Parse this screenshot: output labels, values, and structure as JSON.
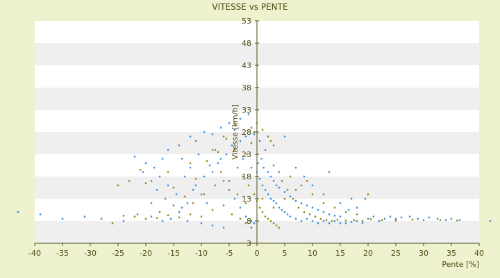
{
  "chart_data": {
    "type": "scatter",
    "title": "VITESSE vs PENTE",
    "xlabel": "Pente [%]",
    "ylabel": "Vitesse [km/h]",
    "xlim": [
      -40,
      40
    ],
    "ylim": [
      3,
      53
    ],
    "xticks": [
      -40,
      -35,
      -30,
      -25,
      -20,
      -15,
      -10,
      -5,
      0,
      5,
      10,
      15,
      20,
      25,
      30,
      35,
      40
    ],
    "yticks": [
      3,
      8,
      13,
      18,
      23,
      28,
      33,
      38,
      43,
      48,
      53
    ],
    "grid": "horizontal alternating bands",
    "legend": "none",
    "colors": {
      "page_background": "#eef2cf",
      "plot_band_light": "#ffffff",
      "plot_band_dark": "#efefef",
      "axis": "#4a4a10",
      "series_blue": "#3a8fd8",
      "series_olive": "#8a8a1a"
    },
    "series": [
      {
        "color": "blue",
        "points": [
          [
            -43,
            10
          ],
          [
            -39,
            9.5
          ],
          [
            -35,
            8.5
          ],
          [
            -31,
            9
          ],
          [
            -28,
            8.5
          ],
          [
            -24,
            8
          ],
          [
            -21.5,
            9.5
          ],
          [
            -19,
            9
          ],
          [
            -17,
            8
          ],
          [
            -15.5,
            8.5
          ],
          [
            -12.5,
            8
          ],
          [
            -10,
            7.5
          ],
          [
            -8,
            7
          ],
          [
            -6,
            6.5
          ],
          [
            -22,
            22.5
          ],
          [
            -20,
            21
          ],
          [
            -17,
            22
          ],
          [
            -16,
            24
          ],
          [
            -14,
            25
          ],
          [
            -12,
            27
          ],
          [
            -11,
            26
          ],
          [
            -9.5,
            28
          ],
          [
            -8,
            27.5
          ],
          [
            -6.5,
            29
          ],
          [
            -5,
            30
          ],
          [
            -4,
            28.5
          ],
          [
            -3,
            31
          ],
          [
            -1.5,
            32
          ],
          [
            -20.5,
            19
          ],
          [
            -19,
            17
          ],
          [
            -18,
            15
          ],
          [
            -16.5,
            13
          ],
          [
            -15,
            11.5
          ],
          [
            -14,
            10
          ],
          [
            -13,
            18
          ],
          [
            -12,
            20
          ],
          [
            -11,
            16
          ],
          [
            -10,
            14
          ],
          [
            -9,
            12
          ],
          [
            -8,
            19
          ],
          [
            -7,
            21
          ],
          [
            -6,
            17
          ],
          [
            -5,
            15
          ],
          [
            -4,
            13
          ],
          [
            -3,
            11
          ],
          [
            -2,
            9
          ],
          [
            -1,
            8
          ],
          [
            -0.5,
            7.5
          ],
          [
            -13.5,
            22
          ],
          [
            -10.5,
            23
          ],
          [
            -7.5,
            24
          ],
          [
            -4.5,
            25
          ],
          [
            -2.5,
            22
          ],
          [
            -1,
            20
          ],
          [
            0,
            19
          ],
          [
            0.5,
            17.5
          ],
          [
            1,
            16
          ],
          [
            1.5,
            15
          ],
          [
            2,
            14
          ],
          [
            2.5,
            13
          ],
          [
            3,
            12.5
          ],
          [
            3.5,
            12
          ],
          [
            4,
            11
          ],
          [
            4.5,
            10.5
          ],
          [
            5,
            10
          ],
          [
            5.5,
            9.5
          ],
          [
            6,
            9
          ],
          [
            7,
            8.5
          ],
          [
            8,
            8
          ],
          [
            9,
            8.5
          ],
          [
            10,
            8
          ],
          [
            11,
            7.5
          ],
          [
            12,
            8
          ],
          [
            13,
            7.5
          ],
          [
            14,
            8
          ],
          [
            15,
            7.5
          ],
          [
            16,
            7.5
          ],
          [
            17,
            7.8
          ],
          [
            18,
            8
          ],
          [
            19,
            7.5
          ],
          [
            20,
            8.5
          ],
          [
            21,
            9
          ],
          [
            22,
            8
          ],
          [
            23,
            8.5
          ],
          [
            24,
            9
          ],
          [
            25,
            8.5
          ],
          [
            26,
            8.8
          ],
          [
            27.5,
            9
          ],
          [
            29,
            8.5
          ],
          [
            30,
            8.2
          ],
          [
            31,
            8.8
          ],
          [
            32.5,
            8.5
          ],
          [
            34,
            8.2
          ],
          [
            35,
            8.5
          ],
          [
            36.5,
            8.2
          ],
          [
            42,
            8
          ],
          [
            0.2,
            21
          ],
          [
            0.8,
            22
          ],
          [
            1.2,
            20
          ],
          [
            2,
            19
          ],
          [
            2.5,
            18
          ],
          [
            3,
            17
          ],
          [
            3.5,
            16
          ],
          [
            4,
            15.5
          ],
          [
            5,
            14.5
          ],
          [
            6,
            13.5
          ],
          [
            7,
            12.5
          ],
          [
            8,
            12
          ],
          [
            9,
            11.5
          ],
          [
            10,
            11
          ],
          [
            11,
            10.5
          ],
          [
            12,
            10
          ],
          [
            13,
            9.5
          ],
          [
            14,
            9.2
          ],
          [
            15,
            9
          ],
          [
            16.5,
            10.5
          ],
          [
            18,
            11
          ],
          [
            19.5,
            13
          ],
          [
            17,
            13
          ],
          [
            15,
            12
          ],
          [
            12,
            14
          ],
          [
            10,
            16
          ],
          [
            8.5,
            18
          ],
          [
            7,
            20
          ],
          [
            5,
            27
          ],
          [
            3,
            25
          ],
          [
            1.5,
            24
          ],
          [
            0.5,
            26
          ],
          [
            -0.5,
            27.5
          ],
          [
            -1,
            29
          ],
          [
            -2,
            27
          ],
          [
            -3,
            26
          ],
          [
            -5.5,
            23
          ],
          [
            -6.5,
            22
          ],
          [
            -8.5,
            20.5
          ],
          [
            -9.5,
            18
          ],
          [
            -11.5,
            15
          ],
          [
            -12.5,
            12
          ],
          [
            -13.5,
            11
          ],
          [
            -14.5,
            14
          ],
          [
            -16,
            16
          ],
          [
            -17.5,
            18
          ],
          [
            -18.5,
            20
          ]
        ]
      },
      {
        "color": "olive",
        "points": [
          [
            -26,
            7.5
          ],
          [
            -23,
            17
          ],
          [
            -21,
            19.5
          ],
          [
            -19,
            12
          ],
          [
            -17.5,
            10
          ],
          [
            -15,
            15.5
          ],
          [
            -13,
            13.5
          ],
          [
            -11,
            17.5
          ],
          [
            -9,
            21.5
          ],
          [
            -7,
            23.5
          ],
          [
            -5.5,
            26.5
          ],
          [
            -4,
            24
          ],
          [
            -3.5,
            20
          ],
          [
            -2.5,
            18
          ],
          [
            -1.5,
            16
          ],
          [
            -0.5,
            14
          ],
          [
            0,
            12.5
          ],
          [
            0.5,
            11
          ],
          [
            1,
            10
          ],
          [
            1.5,
            9
          ],
          [
            2,
            8.5
          ],
          [
            2.5,
            8
          ],
          [
            3,
            7.5
          ],
          [
            3.5,
            7
          ],
          [
            4,
            6.5
          ],
          [
            0,
            30
          ],
          [
            -0.5,
            28
          ],
          [
            1,
            28.5
          ],
          [
            2,
            27
          ],
          [
            2.5,
            26
          ],
          [
            -1,
            25.5
          ],
          [
            -1.8,
            23
          ],
          [
            4.5,
            17
          ],
          [
            5.5,
            15
          ],
          [
            6.5,
            13
          ],
          [
            7.5,
            11
          ],
          [
            8.5,
            10
          ],
          [
            9.5,
            9.5
          ],
          [
            10.5,
            9
          ],
          [
            11.5,
            8.5
          ],
          [
            12.5,
            8.2
          ],
          [
            13.5,
            8
          ],
          [
            14.5,
            8.3
          ],
          [
            16,
            8.1
          ],
          [
            17.5,
            8.2
          ],
          [
            19,
            8
          ],
          [
            20.5,
            8.4
          ],
          [
            22.5,
            8.2
          ],
          [
            25,
            8.1
          ],
          [
            28,
            8.3
          ],
          [
            33,
            8.2
          ],
          [
            36,
            8.1
          ],
          [
            -8,
            10.5
          ],
          [
            -6,
            11.5
          ],
          [
            -4.5,
            9.5
          ],
          [
            -3,
            8.5
          ],
          [
            -2,
            7.5
          ],
          [
            -1,
            6.5
          ],
          [
            -10,
            9
          ],
          [
            -12,
            9.5
          ],
          [
            -14,
            8.8
          ],
          [
            -16,
            9.3
          ],
          [
            -18,
            8.7
          ],
          [
            -20,
            8.5
          ],
          [
            -22,
            9
          ],
          [
            -24,
            9.2
          ],
          [
            -25,
            16
          ],
          [
            -20,
            16.5
          ],
          [
            -16,
            19
          ],
          [
            -12,
            21
          ],
          [
            -8,
            24
          ],
          [
            -6,
            27
          ],
          [
            -4,
            30
          ],
          [
            3,
            20.5
          ],
          [
            4,
            19
          ],
          [
            6,
            18
          ],
          [
            8,
            16
          ],
          [
            10,
            14
          ],
          [
            12,
            12
          ],
          [
            14,
            11
          ],
          [
            16,
            10
          ],
          [
            18,
            9.5
          ],
          [
            20,
            14
          ],
          [
            13,
            19
          ],
          [
            9,
            17
          ],
          [
            7,
            15
          ],
          [
            5,
            13
          ],
          [
            3,
            11
          ],
          [
            1,
            13
          ],
          [
            -2,
            12
          ],
          [
            -3.5,
            14
          ],
          [
            -5,
            17
          ],
          [
            -6.5,
            19
          ],
          [
            -7.5,
            16
          ],
          [
            -9.5,
            14
          ],
          [
            -11.5,
            12
          ]
        ]
      }
    ]
  }
}
